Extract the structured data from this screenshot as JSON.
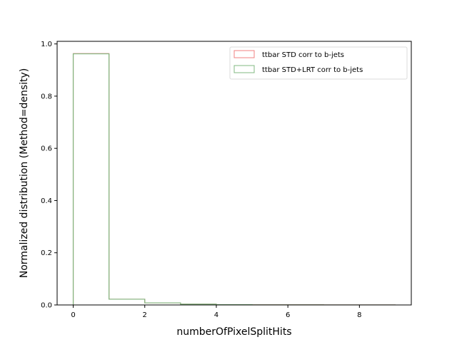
{
  "chart_data": {
    "type": "bar",
    "subtype": "step-histogram",
    "xlabel": "numberOfPixelSplitHits",
    "ylabel": "Normalized distribution (Method=density)",
    "xlim": [
      -0.45,
      9.45
    ],
    "ylim": [
      0,
      1.01
    ],
    "xticks": [
      0,
      2,
      4,
      6,
      8
    ],
    "yticks": [
      0.0,
      0.2,
      0.4,
      0.6,
      0.8,
      1.0
    ],
    "bin_edges": [
      0,
      1,
      2,
      3,
      4,
      5,
      6,
      7,
      8,
      9
    ],
    "series": [
      {
        "name": "ttbar STD corr to b-jets",
        "color": "#f08080",
        "values": [
          0.963,
          0.022,
          0.008,
          0.003,
          0.001,
          0.0005,
          0.0003,
          0.0002,
          0.0001
        ]
      },
      {
        "name": "ttbar STD+LRT corr to b-jets",
        "color": "#80b880",
        "values": [
          0.962,
          0.022,
          0.008,
          0.003,
          0.001,
          0.0005,
          0.0003,
          0.0002,
          0.0001
        ]
      }
    ],
    "legend": "top-right",
    "grid": false
  }
}
